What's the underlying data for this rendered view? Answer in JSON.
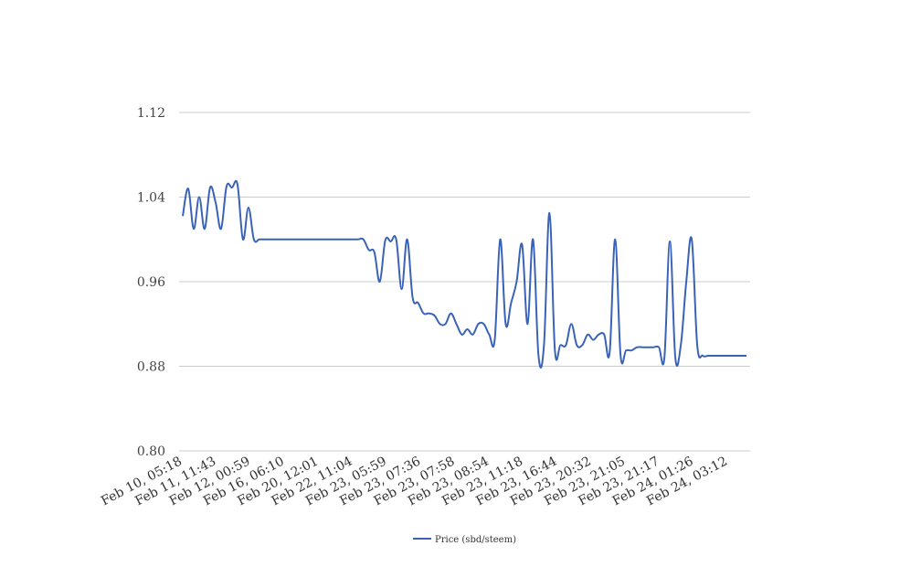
{
  "chart_data": {
    "type": "line",
    "title": "",
    "xlabel": "",
    "ylabel": "",
    "ylim": [
      0.8,
      1.12
    ],
    "yticks": [
      "0.80",
      "0.88",
      "0.96",
      "1.04",
      "1.12"
    ],
    "grid": true,
    "legend_position": "bottom",
    "x_tick_labels": [
      "Feb 10, 05:18",
      "Feb 11, 11:43",
      "Feb 12, 00:59",
      "Feb 16, 06:10",
      "Feb 20, 12:01",
      "Feb 22, 11:04",
      "Feb 23, 05:59",
      "Feb 23, 07:36",
      "Feb 23, 07:58",
      "Feb 23, 08:54",
      "Feb 23, 11:18",
      "Feb 23, 16:44",
      "Feb 23, 20:32",
      "Feb 23, 21:05",
      "Feb 23, 21:17",
      "Feb 24, 01:26",
      "Feb 24, 03:12"
    ],
    "series": [
      {
        "name": "Price (sbd/steem)",
        "color": "#3a63b8",
        "values": [
          1.022,
          1.048,
          1.01,
          1.04,
          1.01,
          1.049,
          1.035,
          1.01,
          1.05,
          1.049,
          1.052,
          1.0,
          1.03,
          1.0,
          1.0,
          1.0,
          1.0,
          1.0,
          1.0,
          1.0,
          1.0,
          1.0,
          1.0,
          1.0,
          1.0,
          1.0,
          1.0,
          1.0,
          1.0,
          1.0,
          1.0,
          1.0,
          1.0,
          1.0,
          0.99,
          0.988,
          0.96,
          0.999,
          0.998,
          1.0,
          0.953,
          1.0,
          0.945,
          0.94,
          0.93,
          0.93,
          0.928,
          0.92,
          0.92,
          0.93,
          0.92,
          0.91,
          0.915,
          0.91,
          0.92,
          0.92,
          0.91,
          0.905,
          1.0,
          0.92,
          0.94,
          0.96,
          0.995,
          0.92,
          1.0,
          0.89,
          0.9,
          1.025,
          0.895,
          0.9,
          0.9,
          0.92,
          0.9,
          0.9,
          0.91,
          0.905,
          0.91,
          0.91,
          0.893,
          1.0,
          0.89,
          0.895,
          0.895,
          0.898,
          0.898,
          0.898,
          0.898,
          0.898,
          0.888,
          0.998,
          0.888,
          0.9,
          0.96,
          1.0,
          0.9,
          0.89,
          0.89,
          0.89,
          0.89,
          0.89,
          0.89,
          0.89,
          0.89,
          0.89
        ]
      }
    ]
  }
}
